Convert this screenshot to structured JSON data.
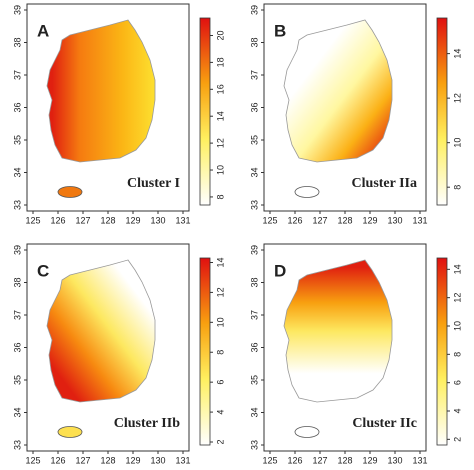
{
  "axes": {
    "xlim": [
      125,
      131
    ],
    "xticks": [
      125,
      126,
      127,
      128,
      129,
      130,
      131
    ],
    "ylim": [
      33,
      39
    ],
    "yticks": [
      33,
      34,
      35,
      36,
      37,
      38,
      39
    ]
  },
  "panels": [
    {
      "letter": "A",
      "title": "Cluster I",
      "colorbar": {
        "lim": [
          7.4,
          21.3
        ],
        "ticks": [
          8,
          10,
          12,
          14,
          16,
          18,
          20
        ]
      }
    },
    {
      "letter": "B",
      "title": "Cluster IIa",
      "colorbar": {
        "lim": [
          7.2,
          15.6
        ],
        "ticks": [
          8,
          10,
          12,
          14
        ]
      }
    },
    {
      "letter": "C",
      "title": "Cluster IIb",
      "colorbar": {
        "lim": [
          1.8,
          14.3
        ],
        "ticks": [
          2,
          4,
          6,
          8,
          10,
          12,
          14
        ]
      }
    },
    {
      "letter": "D",
      "title": "Cluster IIc",
      "colorbar": {
        "lim": [
          1.6,
          14.8
        ],
        "ticks": [
          2,
          4,
          6,
          8,
          10,
          12,
          14
        ]
      }
    }
  ]
}
